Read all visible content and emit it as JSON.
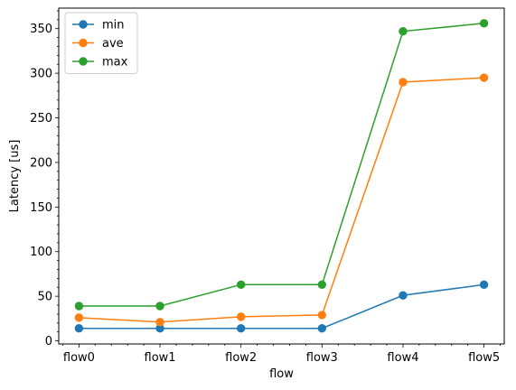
{
  "chart_data": {
    "type": "line",
    "categories": [
      "flow0",
      "flow1",
      "flow2",
      "flow3",
      "flow4",
      "flow5"
    ],
    "series": [
      {
        "name": "min",
        "color": "#1f77b4",
        "values": [
          14,
          14,
          14,
          14,
          51,
          63
        ]
      },
      {
        "name": "ave",
        "color": "#ff7f0e",
        "values": [
          26,
          21,
          27,
          29,
          290,
          295
        ]
      },
      {
        "name": "max",
        "color": "#2ca02c",
        "values": [
          39,
          39,
          63,
          63,
          347,
          356
        ]
      }
    ],
    "xlabel": "flow",
    "ylabel": "Latency [us]",
    "ylim": [
      -3.5,
      373
    ],
    "yticks": [
      0,
      50,
      100,
      150,
      200,
      250,
      300,
      350
    ],
    "y_minor_step": 10,
    "grid": false,
    "legend_position": "top-left",
    "marker": "circle"
  }
}
